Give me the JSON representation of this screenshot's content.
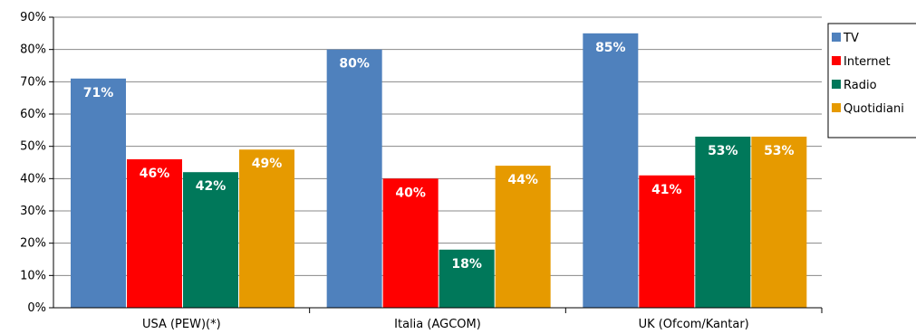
{
  "chart_data": {
    "type": "bar",
    "title": "",
    "xlabel": "",
    "ylabel": "",
    "ylim": [
      0,
      90
    ],
    "yticks": [
      "0%",
      "10%",
      "20%",
      "30%",
      "40%",
      "50%",
      "60%",
      "70%",
      "80%",
      "90%"
    ],
    "categories": [
      "USA (PEW)(*)",
      "Italia (AGCOM)",
      "UK (Ofcom/Kantar)"
    ],
    "series": [
      {
        "name": "TV",
        "color": "#4F81BD",
        "values": [
          71,
          80,
          85
        ],
        "labels": [
          "71%",
          "80%",
          "85%"
        ]
      },
      {
        "name": "Internet",
        "color": "#FF0000",
        "values": [
          46,
          40,
          41
        ],
        "labels": [
          "46%",
          "40%",
          "41%"
        ]
      },
      {
        "name": "Radio",
        "color": "#00785A",
        "values": [
          42,
          18,
          53
        ],
        "labels": [
          "42%",
          "18%",
          "53%"
        ]
      },
      {
        "name": "Quotidiani",
        "color": "#E69A00",
        "values": [
          49,
          44,
          53
        ],
        "labels": [
          "49%",
          "44%",
          "53%"
        ]
      }
    ],
    "grid": true,
    "legend": "right"
  }
}
